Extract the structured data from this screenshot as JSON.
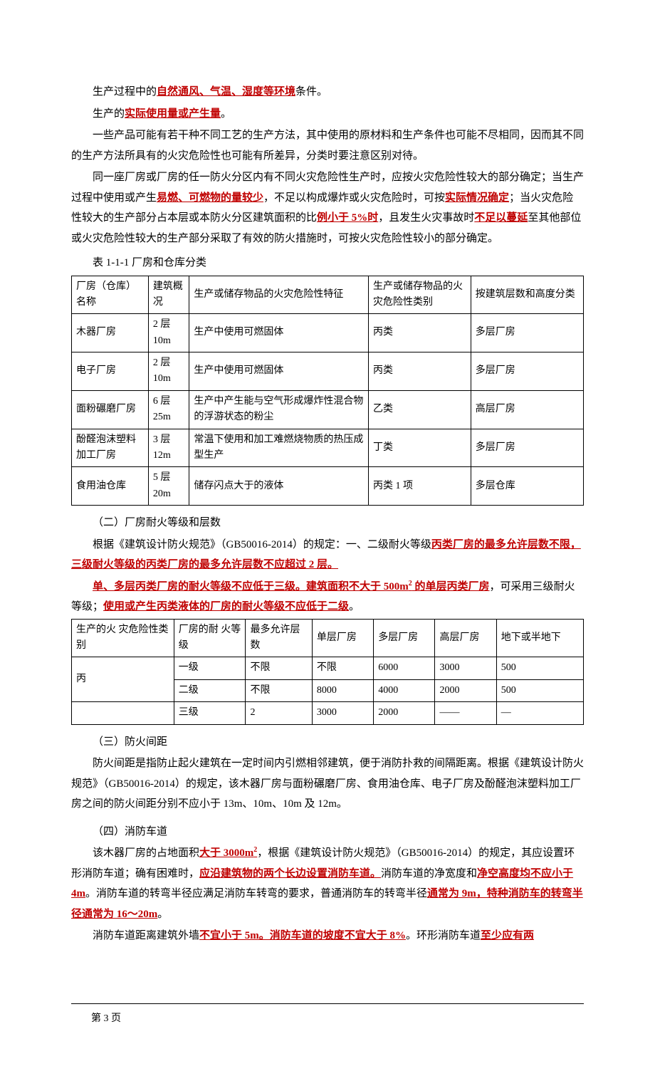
{
  "p1": {
    "t1": "生产过程中的",
    "u1": "自然通风、气温、湿度等环境",
    "t2": "条件。"
  },
  "p2": {
    "t1": "生产的",
    "u1": "实际使用量或产生量",
    "t2": "。"
  },
  "p3": "一些产品可能有若干种不同工艺的生产方法，其中使用的原材料和生产条件也可能不尽相同，因而其不同的生产方法所具有的火灾危险性也可能有所差异，分类时要注意区别对待。",
  "p4": {
    "t1": "同一座厂房或厂房的任一防火分区内有不同火灾危险性生产时，应按火灾危险性较大的部分确定；当生产过程中使用或产生",
    "u1": "易燃、可燃物的量较少",
    "t2": "，不足以构成爆炸或火灾危险时，可按",
    "u2": "实际情况确定",
    "t3": "；当火灾危险性较大的生产部分占本层或本防火分区建筑面积的比",
    "u3": "例小于 5%时",
    "t4": "，且发生火灾事故时",
    "u4": "不足以蔓延",
    "t5": "至其他部位或火灾危险性较大的生产部分采取了有效的防火措施时，可按火灾危险性较小的部分确定。"
  },
  "table1": {
    "caption": "表 1-1-1 厂房和仓库分类",
    "headers": [
      "厂房（仓库）名称",
      "建筑概况",
      "生产或储存物品的火灾危险性特征",
      "生产或储存物品的火灾危险性类别",
      "按建筑层数和高度分类"
    ],
    "rows": [
      [
        "木器厂房",
        "2 层\n10m",
        "生产中使用可燃固体",
        "丙类",
        "多层厂房"
      ],
      [
        "电子厂房",
        "2 层\n10m",
        "生产中使用可燃固体",
        "丙类",
        "多层厂房"
      ],
      [
        "面粉碾磨厂房",
        "6 层\n25m",
        "生产中产生能与空气形成爆炸性混合物的浮游状态的粉尘",
        "乙类",
        "高层厂房"
      ],
      [
        "酚醛泡沫塑料加工厂房",
        "3 层\n12m",
        "常温下使用和加工难燃烧物质的热压成型生产",
        "丁类",
        "多层厂房"
      ],
      [
        "食用油仓库",
        "5 层\n20m",
        "储存闪点大于的液体",
        "丙类 1 项",
        "多层仓库"
      ]
    ],
    "col_widths": [
      "15%",
      "8%",
      "35%",
      "20%",
      "22%"
    ]
  },
  "sec2": {
    "title": "（二）厂房耐火等级和层数",
    "p1a": "根据《建筑设计防火规范》（GB50016-2014）的规定：一、二级耐火等级",
    "u1": "丙类厂房的最多允许层数不限，三级耐火等级的丙类厂房的最多允许层数不应超过 2 层。",
    "p2u1": "单、多层丙类厂房的耐火等级不应低于三级。建筑面积不大于 500m",
    "p2u1sup": "2",
    "p2u1b": " 的单层丙类厂房",
    "p2t": "，可采用三级耐火等级；",
    "p2u2": "使用或产生丙类液体的厂房的耐火等级不应低于二级",
    "p2t2": "。"
  },
  "table2": {
    "headers": [
      "生产的火 灾危险性类别",
      "厂房的耐 火等级",
      "最多允许层数",
      "单层厂房",
      "多层厂房",
      "高层厂房",
      "地下或半地下"
    ],
    "rows": [
      [
        "丙",
        "一级",
        "不限",
        "不限",
        "6000",
        "3000",
        "500"
      ],
      [
        "",
        "二级",
        "不限",
        "8000",
        "4000",
        "2000",
        "500"
      ],
      [
        "",
        "三级",
        "2",
        "3000",
        "2000",
        "——",
        "—"
      ]
    ],
    "col_widths": [
      "20%",
      "14%",
      "13%",
      "12%",
      "12%",
      "12%",
      "17%"
    ]
  },
  "sec3": {
    "title": "（三）防火间距",
    "p1": "防火间距是指防止起火建筑在一定时间内引燃相邻建筑，便于消防扑救的间隔距离。根据《建筑设计防火规范》（GB50016-2014）的规定，该木器厂房与面粉碾磨厂房、食用油仓库、电子厂房及酚醛泡沫塑料加工厂房之间的防火间距分别不应小于 13m、10m、10m 及 12m。"
  },
  "sec4": {
    "title": "（四）消防车道",
    "p1a": "该木器厂房的占地面积",
    "u1": "大于 3000m",
    "u1sup": "2",
    "p1b": "，根据《建筑设计防火规范》（GB50016-2014）的规定，其应设置环形消防车道；确有困难时，",
    "u2": "应沿建筑物的两个长边设置消防车道。",
    "p1c": "消防车道的净宽度和",
    "u3": "净空高度均不应小于 4m",
    "p1d": "。消防车道的转弯半径应满足消防车转弯的要求，普通消防车的转弯半径",
    "u4": "通常为 9m，特种消防车的转弯半径通常为 16～20m",
    "p1e": "。",
    "p2a": "消防车道距离建筑外墙",
    "u5": "不宜小于 5m。消防车道的坡度不宜大于 8%",
    "p2b": "。环形消防车道",
    "u6": "至少应有两"
  },
  "footer": "第 3 页"
}
